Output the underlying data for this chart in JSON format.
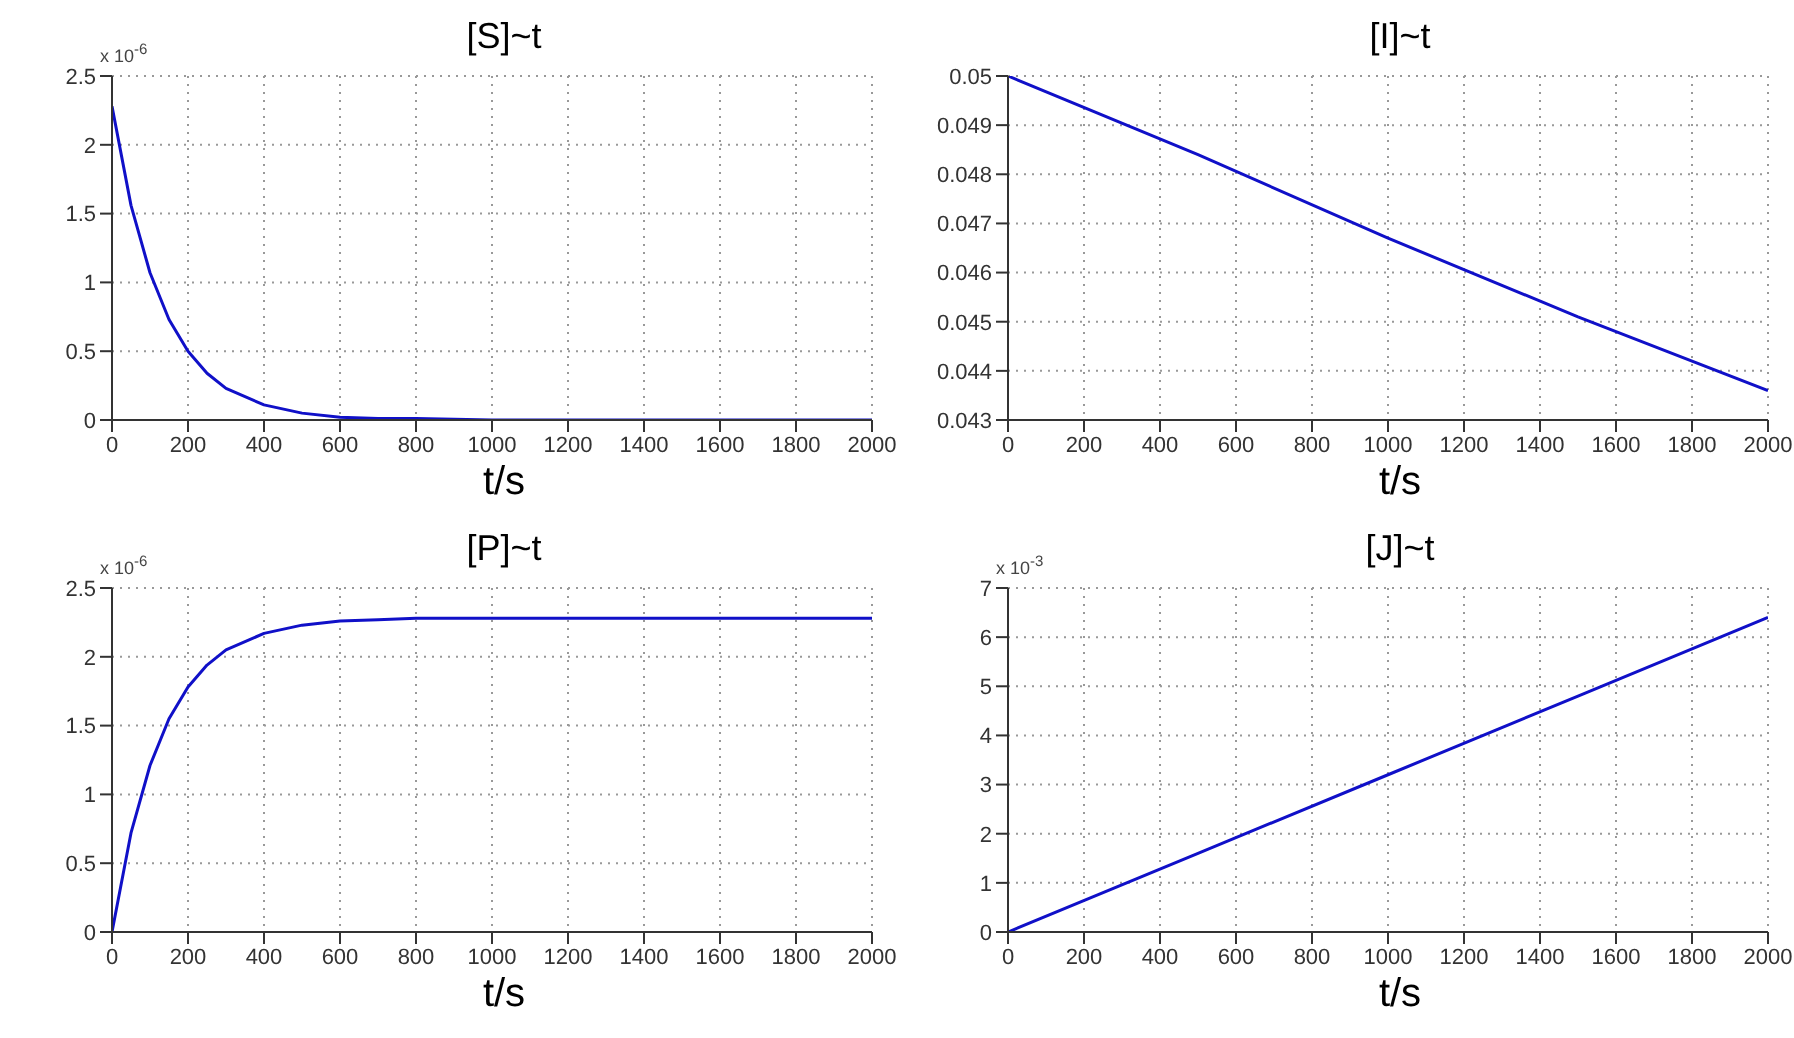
{
  "chart_data": [
    {
      "type": "line",
      "title": "[S]~t",
      "xlabel": "t/s",
      "annotations": [
        "x 10$^{-6}$"
      ],
      "color": "#1010c8",
      "grid": true,
      "x": [
        0,
        50,
        100,
        150,
        200,
        250,
        300,
        400,
        500,
        600,
        700,
        800,
        1000,
        1200,
        1600,
        2000
      ],
      "values": [
        2.28,
        1.56,
        1.07,
        0.73,
        0.5,
        0.34,
        0.23,
        0.11,
        0.05,
        0.02,
        0.01,
        0.01,
        0,
        0,
        0,
        0
      ],
      "xlim": [
        0,
        2000
      ],
      "xticks": [
        0,
        200,
        400,
        600,
        800,
        1000,
        1200,
        1400,
        1600,
        1800,
        2000
      ],
      "ylim": [
        0,
        2.5
      ],
      "yticks": [
        0,
        0.5,
        1,
        1.5,
        2,
        2.5
      ]
    },
    {
      "type": "line",
      "title": "[I]~t",
      "xlabel": "t/s",
      "color": "#1010c8",
      "grid": true,
      "x": [
        0,
        500,
        1000,
        1500,
        2000
      ],
      "values": [
        0.05,
        0.0484,
        0.0467,
        0.0451,
        0.0436
      ],
      "xlim": [
        0,
        2000
      ],
      "xticks": [
        0,
        200,
        400,
        600,
        800,
        1000,
        1200,
        1400,
        1600,
        1800,
        2000
      ],
      "ylim": [
        0.043,
        0.05
      ],
      "yticks": [
        0.043,
        0.044,
        0.045,
        0.046,
        0.047,
        0.048,
        0.049,
        0.05
      ]
    },
    {
      "type": "line",
      "title": "[P]~t",
      "xlabel": "t/s",
      "annotations": [
        "x 10$^{-6}$"
      ],
      "color": "#1010c8",
      "grid": true,
      "x": [
        0,
        50,
        100,
        150,
        200,
        250,
        300,
        400,
        500,
        600,
        700,
        800,
        1000,
        2000
      ],
      "values": [
        0,
        0.72,
        1.21,
        1.55,
        1.78,
        1.94,
        2.05,
        2.17,
        2.23,
        2.26,
        2.27,
        2.28,
        2.28,
        2.28
      ],
      "xlim": [
        0,
        2000
      ],
      "xticks": [
        0,
        200,
        400,
        600,
        800,
        1000,
        1200,
        1400,
        1600,
        1800,
        2000
      ],
      "ylim": [
        0,
        2.5
      ],
      "yticks": [
        0,
        0.5,
        1,
        1.5,
        2,
        2.5
      ]
    },
    {
      "type": "line",
      "title": "[J]~t",
      "xlabel": "t/s",
      "annotations": [
        "x 10$^{-3}$"
      ],
      "color": "#1010c8",
      "grid": true,
      "x": [
        0,
        500,
        1000,
        1500,
        2000
      ],
      "values": [
        0,
        1.6,
        3.2,
        4.8,
        6.4
      ],
      "xlim": [
        0,
        2000
      ],
      "xticks": [
        0,
        200,
        400,
        600,
        800,
        1000,
        1200,
        1400,
        1600,
        1800,
        2000
      ],
      "ylim": [
        0,
        7
      ],
      "yticks": [
        0,
        1,
        2,
        3,
        4,
        5,
        6,
        7
      ]
    }
  ]
}
